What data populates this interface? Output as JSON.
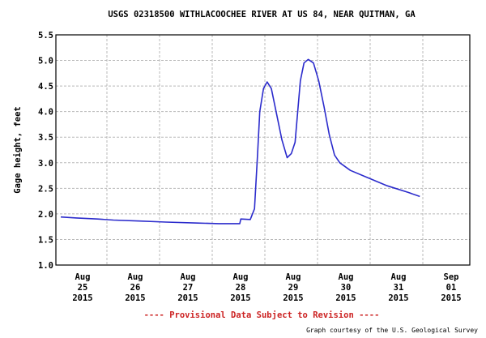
{
  "chart_data": {
    "type": "line",
    "title": "USGS 02318500 WITHLACOOCHEE RIVER AT US 84, NEAR QUITMAN, GA",
    "ylabel": "Gage height, feet",
    "ylim": [
      1.0,
      5.5
    ],
    "yticks": [
      "1.0",
      "1.5",
      "2.0",
      "2.5",
      "3.0",
      "3.5",
      "4.0",
      "4.5",
      "5.0",
      "5.5"
    ],
    "xlim_days": [
      0,
      8
    ],
    "xticks": [
      {
        "day": 0,
        "lines": [
          "Aug",
          "25",
          "2015"
        ]
      },
      {
        "day": 1,
        "lines": [
          "Aug",
          "26",
          "2015"
        ]
      },
      {
        "day": 2,
        "lines": [
          "Aug",
          "27",
          "2015"
        ]
      },
      {
        "day": 3,
        "lines": [
          "Aug",
          "28",
          "2015"
        ]
      },
      {
        "day": 4,
        "lines": [
          "Aug",
          "29",
          "2015"
        ]
      },
      {
        "day": 5,
        "lines": [
          "Aug",
          "30",
          "2015"
        ]
      },
      {
        "day": 6,
        "lines": [
          "Aug",
          "31",
          "2015"
        ]
      },
      {
        "day": 7,
        "lines": [
          "Sep",
          "01",
          "2015"
        ]
      }
    ],
    "grid": true,
    "line_color": "#2b2bcc",
    "series": [
      {
        "x": [
          0.0,
          0.3,
          0.7,
          1.0,
          1.5,
          2.0,
          2.6,
          3.0,
          3.4,
          3.42,
          3.6,
          3.68,
          3.74,
          3.78,
          3.85,
          3.92,
          4.0,
          4.1,
          4.2,
          4.3,
          4.38,
          4.45,
          4.55,
          4.62,
          4.7,
          4.8,
          4.9,
          5.0,
          5.1,
          5.2,
          5.3,
          5.5,
          5.8,
          6.2,
          6.6,
          6.82
        ],
        "y": [
          1.94,
          1.92,
          1.9,
          1.88,
          1.86,
          1.84,
          1.82,
          1.81,
          1.81,
          1.9,
          1.89,
          2.1,
          3.2,
          4.0,
          4.45,
          4.58,
          4.45,
          3.95,
          3.45,
          3.1,
          3.18,
          3.4,
          4.6,
          4.95,
          5.02,
          4.95,
          4.6,
          4.1,
          3.55,
          3.15,
          3.0,
          2.85,
          2.72,
          2.55,
          2.42,
          2.34
        ]
      }
    ]
  },
  "footer": {
    "provisional": "---- Provisional Data Subject to Revision ----",
    "credit": "Graph courtesy of the U.S. Geological Survey"
  }
}
